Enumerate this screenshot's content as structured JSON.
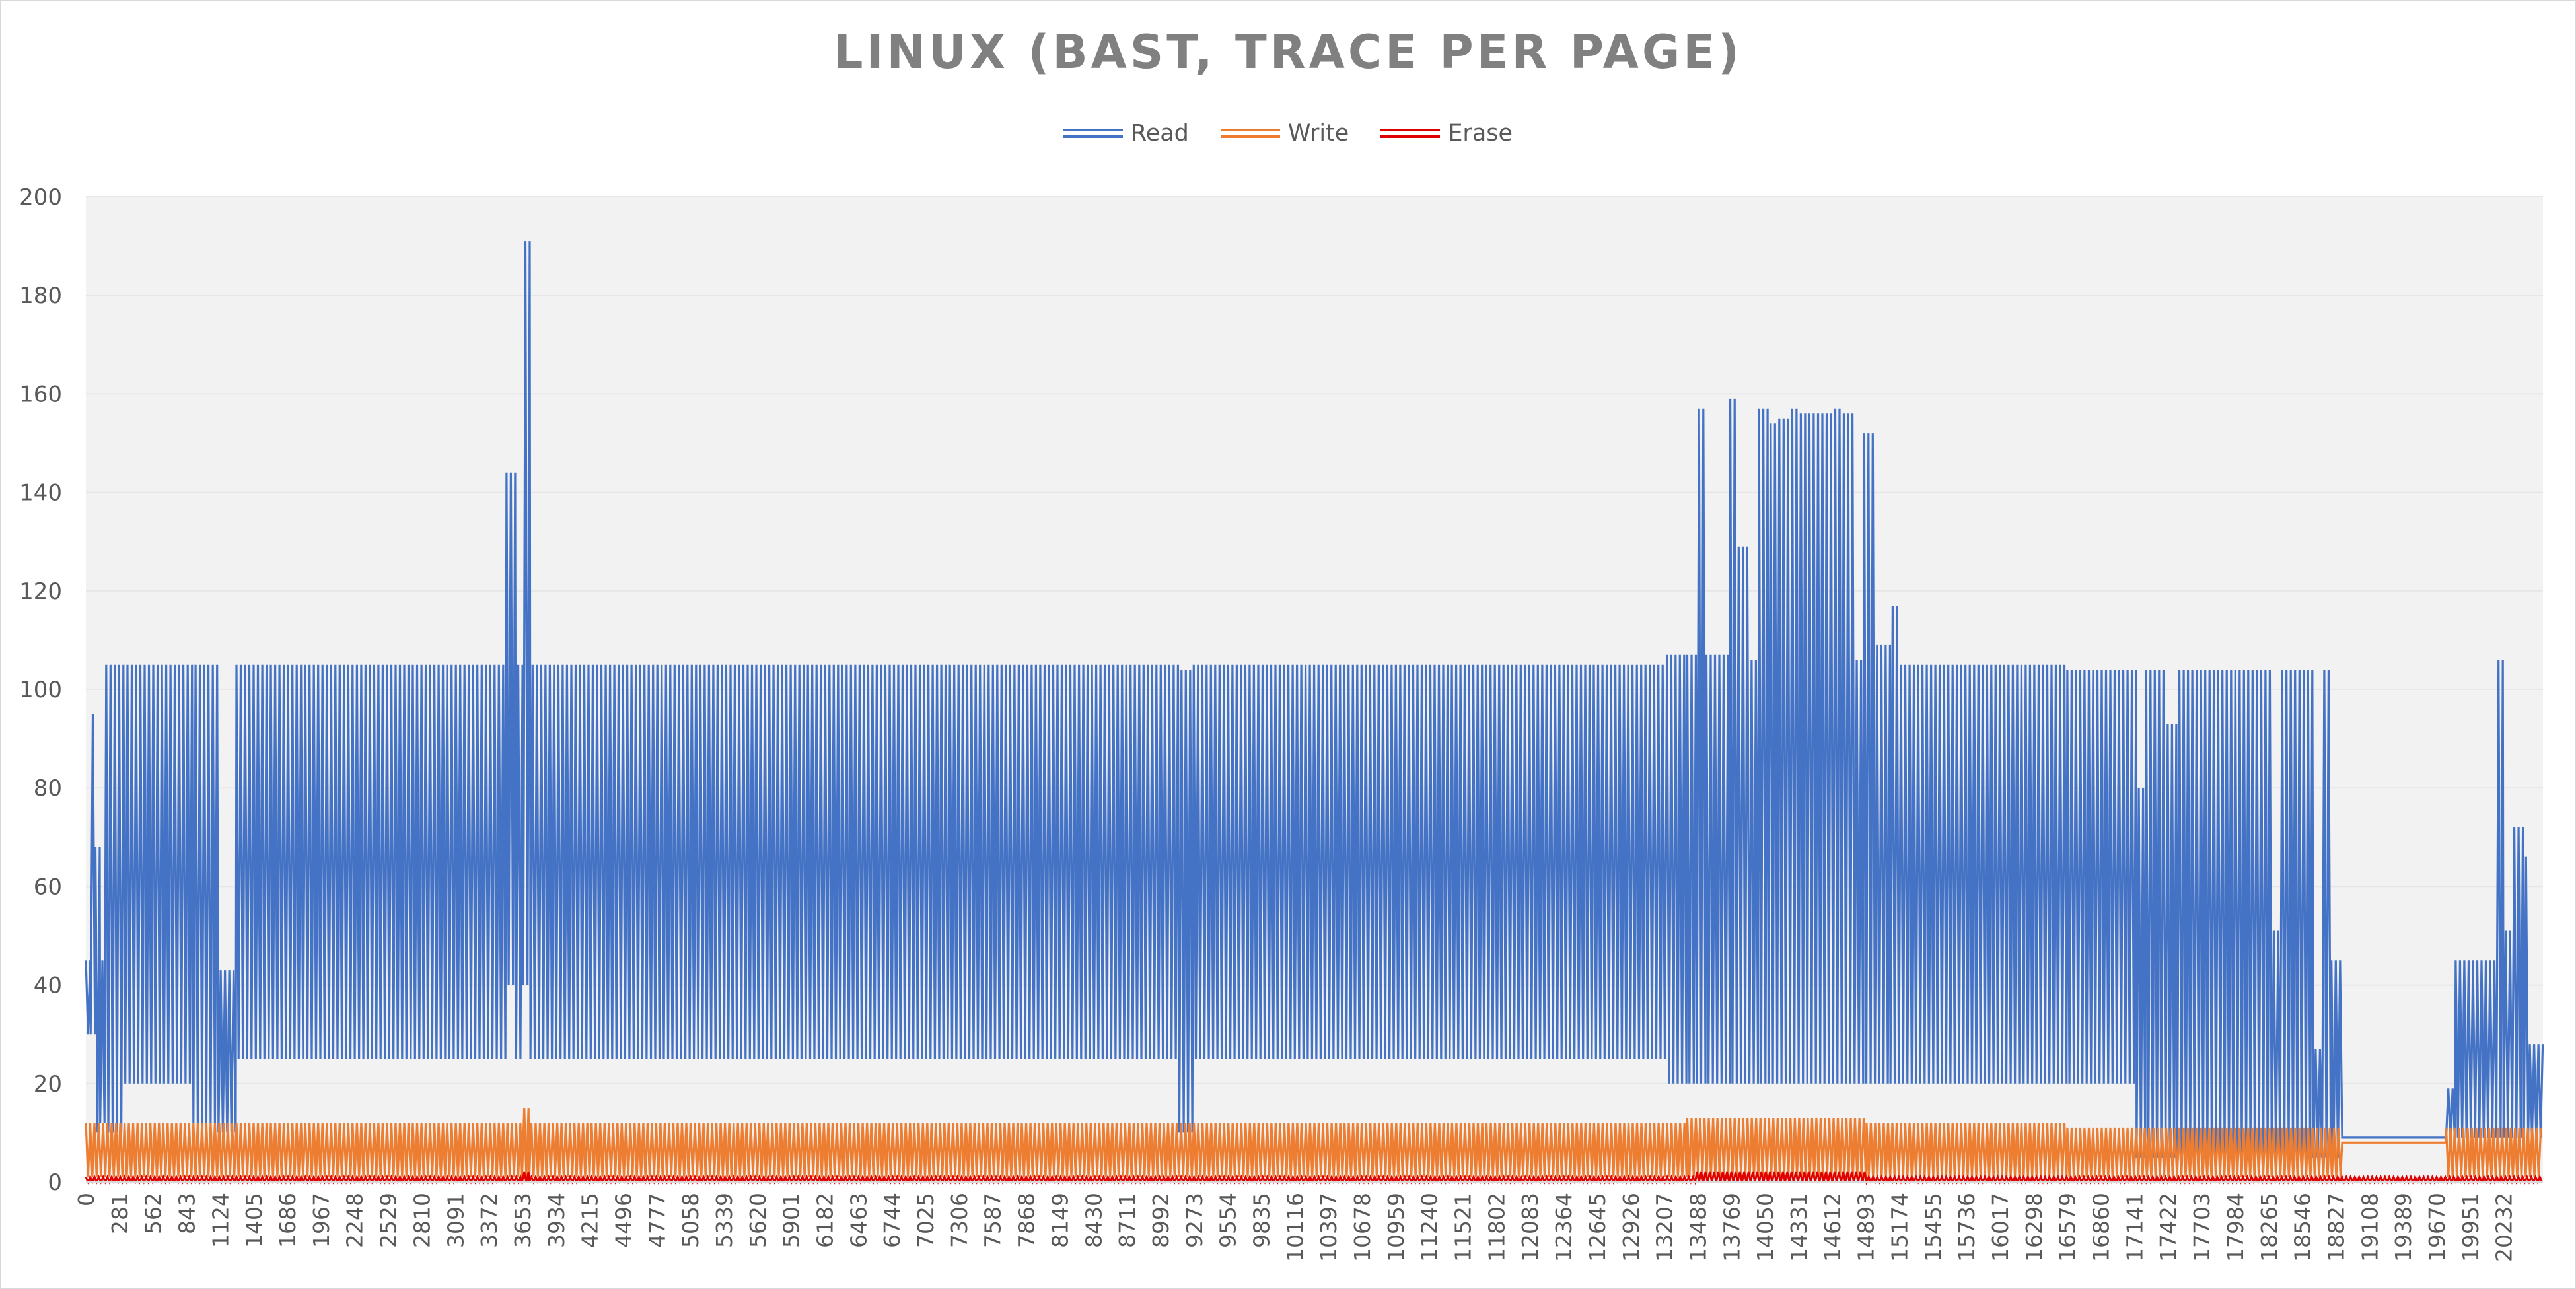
{
  "chart_data": {
    "type": "line",
    "title": "LINUX (BAST, TRACE PER PAGE)",
    "xlabel": "",
    "ylabel": "",
    "x_range": [
      0,
      20560
    ],
    "ylim": [
      0,
      200
    ],
    "y_ticks": [
      0,
      20,
      40,
      60,
      80,
      100,
      120,
      140,
      160,
      180,
      200
    ],
    "x_tick_labels": [
      "0",
      "281",
      "562",
      "843",
      "1124",
      "1405",
      "1686",
      "1967",
      "2248",
      "2529",
      "2810",
      "3091",
      "3372",
      "3653",
      "3934",
      "4215",
      "4496",
      "4777",
      "5058",
      "5339",
      "5620",
      "5901",
      "6182",
      "6463",
      "6744",
      "7025",
      "7306",
      "7587",
      "7868",
      "8149",
      "8430",
      "8711",
      "8992",
      "9273",
      "9554",
      "9835",
      "10116",
      "10397",
      "10678",
      "10959",
      "11240",
      "11521",
      "11802",
      "12083",
      "12364",
      "12645",
      "12926",
      "13207",
      "13488",
      "13769",
      "14050",
      "14331",
      "14612",
      "14893",
      "15174",
      "15455",
      "15736",
      "16017",
      "16298",
      "16579",
      "16860",
      "17141",
      "17422",
      "17703",
      "17984",
      "18265",
      "18546",
      "18827",
      "19108",
      "19389",
      "19670",
      "19951",
      "20232"
    ],
    "grid": true,
    "legend_position": "top",
    "series": [
      {
        "name": "Read",
        "color": "#4472c4",
        "style": "oscillating",
        "segments": [
          {
            "x": [
              0,
              40
            ],
            "high": 45,
            "low": 30
          },
          {
            "x": [
              40,
              80
            ],
            "high": 95,
            "low": 30
          },
          {
            "x": [
              80,
              120
            ],
            "high": 68,
            "low": 10
          },
          {
            "x": [
              120,
              170
            ],
            "high": 45,
            "low": 12
          },
          {
            "x": [
              170,
              330
            ],
            "high": 105,
            "low": 10
          },
          {
            "x": [
              330,
              900
            ],
            "high": 105,
            "low": 20
          },
          {
            "x": [
              900,
              1110
            ],
            "high": 105,
            "low": 12
          },
          {
            "x": [
              1110,
              1260
            ],
            "high": 43,
            "low": 10
          },
          {
            "x": [
              1260,
              3520
            ],
            "high": 105,
            "low": 25
          },
          {
            "x": [
              3520,
              3600
            ],
            "high": 144,
            "low": 40
          },
          {
            "x": [
              3600,
              3660
            ],
            "high": 105,
            "low": 25
          },
          {
            "x": [
              3660,
              3720
            ],
            "high": 191,
            "low": 40
          },
          {
            "x": [
              3720,
              9150
            ],
            "high": 105,
            "low": 25
          },
          {
            "x": [
              9150,
              9270
            ],
            "high": 104,
            "low": 10
          },
          {
            "x": [
              9270,
              13230
            ],
            "high": 105,
            "low": 25
          },
          {
            "x": [
              13230,
              13400
            ],
            "high": 107,
            "low": 20
          },
          {
            "x": [
              13400,
              13480
            ],
            "high": 107,
            "low": 20
          },
          {
            "x": [
              13480,
              13560
            ],
            "high": 157,
            "low": 20
          },
          {
            "x": [
              13560,
              13760
            ],
            "high": 107,
            "low": 20
          },
          {
            "x": [
              13760,
              13830
            ],
            "high": 159,
            "low": 20
          },
          {
            "x": [
              13830,
              13920
            ],
            "high": 129,
            "low": 20
          },
          {
            "x": [
              13920,
              14000
            ],
            "high": 106,
            "low": 20
          },
          {
            "x": [
              14000,
              14080
            ],
            "high": 157,
            "low": 20
          },
          {
            "x": [
              14080,
              14170
            ],
            "high": 154,
            "low": 20
          },
          {
            "x": [
              14170,
              14260
            ],
            "high": 155,
            "low": 20
          },
          {
            "x": [
              14260,
              14350
            ],
            "high": 157,
            "low": 20
          },
          {
            "x": [
              14350,
              14440
            ],
            "high": 156,
            "low": 20
          },
          {
            "x": [
              14440,
              14530
            ],
            "high": 156,
            "low": 20
          },
          {
            "x": [
              14530,
              14620
            ],
            "high": 156,
            "low": 20
          },
          {
            "x": [
              14620,
              14710
            ],
            "high": 157,
            "low": 20
          },
          {
            "x": [
              14710,
              14800
            ],
            "high": 156,
            "low": 20
          },
          {
            "x": [
              14800,
              14880
            ],
            "high": 106,
            "low": 20
          },
          {
            "x": [
              14880,
              14970
            ],
            "high": 152,
            "low": 20
          },
          {
            "x": [
              14970,
              15100
            ],
            "high": 109,
            "low": 20
          },
          {
            "x": [
              15100,
              15170
            ],
            "high": 117,
            "low": 20
          },
          {
            "x": [
              15170,
              16580
            ],
            "high": 105,
            "low": 20
          },
          {
            "x": [
              16580,
              17160
            ],
            "high": 104,
            "low": 20
          },
          {
            "x": [
              17160,
              17240
            ],
            "high": 80,
            "low": 5
          },
          {
            "x": [
              17240,
              17420
            ],
            "high": 104,
            "low": 5
          },
          {
            "x": [
              17420,
              17500
            ],
            "high": 93,
            "low": 5
          },
          {
            "x": [
              17500,
              18290
            ],
            "high": 104,
            "low": 5
          },
          {
            "x": [
              18290,
              18360
            ],
            "high": 51,
            "low": 5
          },
          {
            "x": [
              18360,
              18640
            ],
            "high": 104,
            "low": 5
          },
          {
            "x": [
              18640,
              18730
            ],
            "high": 27,
            "low": 5
          },
          {
            "x": [
              18730,
              18790
            ],
            "high": 104,
            "low": 5
          },
          {
            "x": [
              18790,
              18880
            ],
            "high": 45,
            "low": 5
          },
          {
            "x": [
              18880,
              19750
            ],
            "high": 9,
            "low": 9
          },
          {
            "x": [
              19750,
              19830
            ],
            "high": 19,
            "low": 9
          },
          {
            "x": [
              19830,
              20170
            ],
            "high": 45,
            "low": 9
          },
          {
            "x": [
              20170,
              20230
            ],
            "high": 106,
            "low": 9
          },
          {
            "x": [
              20230,
              20320
            ],
            "high": 51,
            "low": 9
          },
          {
            "x": [
              20320,
              20400
            ],
            "high": 72,
            "low": 9
          },
          {
            "x": [
              20400,
              20450
            ],
            "high": 66,
            "low": 9
          },
          {
            "x": [
              20450,
              20560
            ],
            "high": 28,
            "low": 9
          }
        ]
      },
      {
        "name": "Write",
        "color": "#ed7d31",
        "style": "oscillating",
        "segments": [
          {
            "x": [
              0,
              3650
            ],
            "high": 12,
            "low": 1
          },
          {
            "x": [
              3650,
              3710
            ],
            "high": 15,
            "low": 1
          },
          {
            "x": [
              3710,
              13400
            ],
            "high": 12,
            "low": 1
          },
          {
            "x": [
              13400,
              14900
            ],
            "high": 13,
            "low": 1
          },
          {
            "x": [
              14900,
              16580
            ],
            "high": 12,
            "low": 1
          },
          {
            "x": [
              16580,
              18880
            ],
            "high": 11,
            "low": 1
          },
          {
            "x": [
              18880,
              19750
            ],
            "high": 8,
            "low": 8
          },
          {
            "x": [
              19750,
              20560
            ],
            "high": 11,
            "low": 1
          }
        ]
      },
      {
        "name": "Erase",
        "color": "#e00000",
        "style": "oscillating",
        "segments": [
          {
            "x": [
              0,
              3650
            ],
            "high": 1,
            "low": 0
          },
          {
            "x": [
              3650,
              3710
            ],
            "high": 2,
            "low": 0
          },
          {
            "x": [
              3710,
              13480
            ],
            "high": 1,
            "low": 0
          },
          {
            "x": [
              13480,
              14900
            ],
            "high": 2,
            "low": 0
          },
          {
            "x": [
              14900,
              20560
            ],
            "high": 1,
            "low": 0
          }
        ]
      }
    ]
  }
}
